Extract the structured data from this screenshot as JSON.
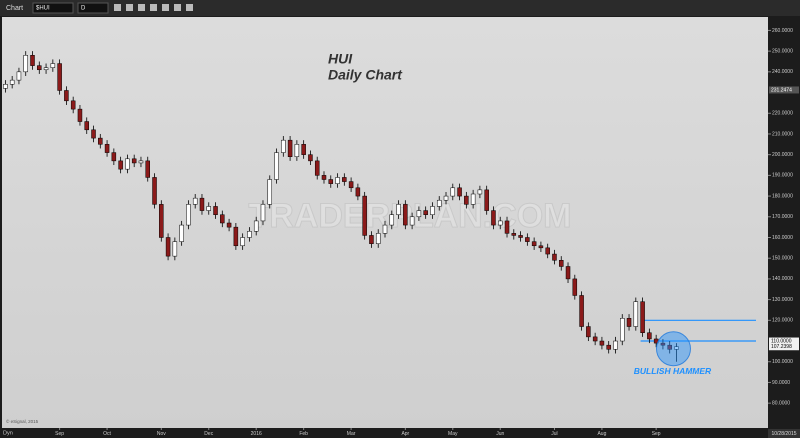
{
  "toolbar": {
    "window_title": "Chart",
    "symbol": "$HUI",
    "interval": "D"
  },
  "chart_data": {
    "type": "candlestick",
    "title": "HUI",
    "subtitle": "Daily Chart",
    "annotation": "BULLISH HAMMER",
    "watermark": "TRADERPLAN.COM",
    "copyright": "© eSignal, 2015",
    "categories": [
      null,
      null,
      null,
      null,
      null,
      null,
      null,
      null,
      "Sep",
      null,
      null,
      null,
      null,
      null,
      null,
      "Oct",
      null,
      null,
      null,
      null,
      null,
      null,
      null,
      "Nov",
      null,
      null,
      null,
      null,
      null,
      null,
      "Dec",
      null,
      null,
      null,
      null,
      null,
      null,
      "2016",
      null,
      null,
      null,
      null,
      null,
      null,
      "Feb",
      null,
      null,
      null,
      null,
      null,
      null,
      "Mar",
      null,
      null,
      null,
      null,
      null,
      null,
      null,
      "Apr",
      null,
      null,
      null,
      null,
      null,
      null,
      "May",
      null,
      null,
      null,
      null,
      null,
      null,
      "Jun",
      null,
      null,
      null,
      null,
      null,
      null,
      null,
      "Jul",
      null,
      null,
      null,
      null,
      null,
      null,
      "Aug",
      null,
      null,
      null,
      null,
      null,
      null,
      null,
      "Sep",
      null,
      null,
      null
    ],
    "open": [
      232,
      234,
      236,
      240,
      248,
      243,
      241,
      242,
      244,
      231,
      226,
      222,
      216,
      212,
      208,
      205,
      201,
      197,
      193,
      198,
      196,
      197,
      189,
      176,
      160,
      151,
      158,
      166,
      176,
      179,
      173,
      175,
      171,
      167,
      165,
      156,
      160,
      163,
      168,
      176,
      188,
      201,
      207,
      199,
      205,
      200,
      197,
      190,
      188,
      186,
      189,
      187,
      184,
      180,
      161,
      157,
      162,
      166,
      171,
      176,
      166,
      170,
      173,
      171,
      175,
      178,
      180,
      184,
      180,
      176,
      181,
      183,
      173,
      166,
      168,
      162,
      161,
      160,
      158,
      156,
      155,
      152,
      149,
      146,
      140,
      132,
      117,
      112,
      110,
      108,
      106,
      110,
      121,
      117,
      129,
      114,
      111,
      109,
      108,
      106
    ],
    "high": [
      236,
      238,
      242,
      250,
      250,
      245,
      244,
      246,
      246,
      233,
      228,
      224,
      218,
      214,
      210,
      207,
      203,
      199,
      200,
      200,
      199,
      199,
      191,
      178,
      162,
      160,
      168,
      178,
      181,
      181,
      177,
      177,
      173,
      169,
      167,
      162,
      165,
      170,
      178,
      190,
      203,
      209,
      209,
      207,
      207,
      202,
      199,
      192,
      190,
      191,
      191,
      189,
      186,
      182,
      163,
      164,
      168,
      173,
      178,
      178,
      172,
      175,
      175,
      177,
      180,
      182,
      186,
      186,
      182,
      183,
      185,
      185,
      175,
      170,
      170,
      164,
      163,
      162,
      160,
      158,
      157,
      154,
      151,
      148,
      142,
      134,
      119,
      114,
      112,
      110,
      112,
      123,
      123,
      131,
      131,
      116,
      113,
      111,
      110,
      109
    ],
    "low": [
      230,
      232,
      234,
      238,
      241,
      239,
      239,
      240,
      229,
      224,
      220,
      214,
      210,
      206,
      203,
      199,
      195,
      191,
      191,
      194,
      194,
      187,
      174,
      158,
      149,
      149,
      156,
      164,
      174,
      171,
      171,
      169,
      165,
      163,
      154,
      154,
      158,
      161,
      166,
      174,
      186,
      199,
      197,
      197,
      198,
      195,
      188,
      186,
      184,
      184,
      185,
      182,
      178,
      159,
      155,
      155,
      160,
      164,
      169,
      164,
      164,
      168,
      169,
      169,
      173,
      176,
      178,
      178,
      174,
      174,
      179,
      171,
      164,
      164,
      160,
      159,
      158,
      156,
      154,
      153,
      150,
      147,
      144,
      138,
      130,
      115,
      110,
      108,
      106,
      104,
      104,
      108,
      115,
      115,
      112,
      109,
      107,
      106,
      104,
      100
    ],
    "close": [
      234,
      236,
      240,
      248,
      243,
      241,
      242,
      244,
      231,
      226,
      222,
      216,
      212,
      208,
      205,
      201,
      197,
      193,
      198,
      196,
      197,
      189,
      176,
      160,
      151,
      158,
      166,
      176,
      179,
      173,
      175,
      171,
      167,
      165,
      156,
      160,
      163,
      168,
      176,
      188,
      201,
      207,
      199,
      205,
      200,
      197,
      190,
      188,
      186,
      189,
      187,
      184,
      180,
      161,
      157,
      162,
      166,
      171,
      176,
      166,
      170,
      173,
      171,
      175,
      178,
      180,
      184,
      180,
      176,
      181,
      183,
      173,
      166,
      168,
      162,
      161,
      160,
      158,
      156,
      155,
      152,
      149,
      146,
      140,
      132,
      117,
      112,
      110,
      108,
      106,
      110,
      121,
      117,
      129,
      114,
      111,
      109,
      108,
      106,
      107.2398
    ],
    "up_color": "#ffffff",
    "down_color": "#8b1a1a",
    "ylim": [
      68,
      266
    ],
    "yticks": [
      {
        "value": 260,
        "label": "260.0000"
      },
      {
        "value": 250,
        "label": "250.0000"
      },
      {
        "value": 240,
        "label": "240.0000"
      },
      {
        "value": 220,
        "label": "220.0000"
      },
      {
        "value": 210,
        "label": "210.0000"
      },
      {
        "value": 200,
        "label": "200.0000"
      },
      {
        "value": 190,
        "label": "190.0000"
      },
      {
        "value": 180,
        "label": "180.0000"
      },
      {
        "value": 170,
        "label": "170.0000"
      },
      {
        "value": 160,
        "label": "160.0000"
      },
      {
        "value": 150,
        "label": "150.0000"
      },
      {
        "value": 140,
        "label": "140.0000"
      },
      {
        "value": 130,
        "label": "130.0000"
      },
      {
        "value": 120,
        "label": "120.0000"
      },
      {
        "value": 100,
        "label": "100.0000"
      },
      {
        "value": 90,
        "label": "90.0000"
      },
      {
        "value": 80,
        "label": "80.0000"
      }
    ],
    "price_flags": [
      {
        "value": 231.2474,
        "label": "231.2474"
      },
      {
        "value": 110,
        "label": "110.0000"
      },
      {
        "value": 107.2398,
        "label": "107.2398"
      }
    ],
    "levels": [
      120,
      110
    ],
    "level_color": "#1e90ff"
  },
  "footer": {
    "mode": "Dyn",
    "date": "10/28/2015"
  }
}
